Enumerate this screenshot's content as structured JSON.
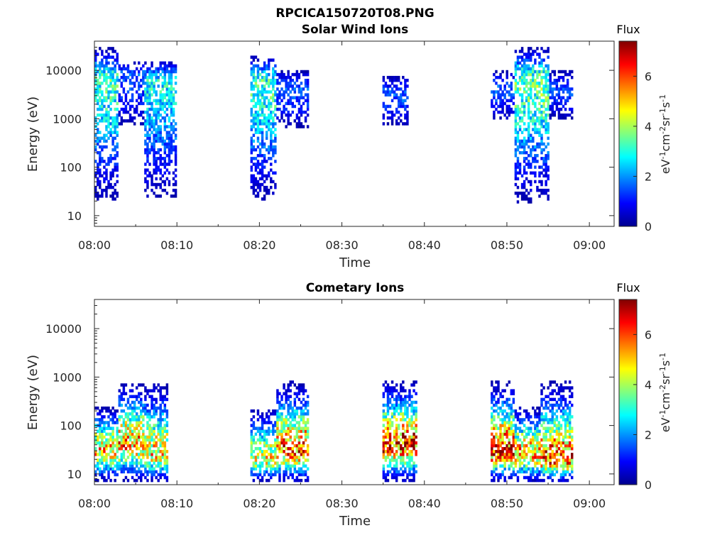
{
  "figure_title": "RPCICA150720T08.PNG",
  "colorbar": {
    "title": "Flux",
    "unit_label": "eV-1cm-2sr-1s-1",
    "range": [
      0,
      7.4
    ],
    "ticks": [
      "0",
      "2",
      "4",
      "6"
    ],
    "colormap": "jet"
  },
  "chart_data": [
    {
      "type": "heatmap",
      "title": "Solar Wind Ions",
      "xlabel": "Time",
      "ylabel": "Energy (eV)",
      "y_scale": "log",
      "ylim": [
        6,
        40000
      ],
      "xlim": [
        "08:00",
        "09:03"
      ],
      "x_tick_labels": [
        "08:00",
        "08:10",
        "08:20",
        "08:30",
        "08:40",
        "08:50",
        "09:00"
      ],
      "y_tick_labels": [
        "10",
        "100",
        "1000",
        "10000"
      ],
      "bursts": [
        {
          "start": "08:00",
          "end": "08:03",
          "peak_energy_eV": 6000,
          "min_energy_eV": 6,
          "max_energy_eV": 40000,
          "peak_flux": 3.6
        },
        {
          "start": "08:03",
          "end": "08:06",
          "peak_energy_eV": 8000,
          "min_energy_eV": 250,
          "max_energy_eV": 20000,
          "peak_flux": 1.8
        },
        {
          "start": "08:06",
          "end": "08:10",
          "peak_energy_eV": 6000,
          "min_energy_eV": 6,
          "max_energy_eV": 20000,
          "peak_flux": 3.2
        },
        {
          "start": "08:19",
          "end": "08:22",
          "peak_energy_eV": 6000,
          "min_energy_eV": 6,
          "max_energy_eV": 25000,
          "peak_flux": 3.6
        },
        {
          "start": "08:22",
          "end": "08:26",
          "peak_energy_eV": 4000,
          "min_energy_eV": 300,
          "max_energy_eV": 15000,
          "peak_flux": 1.8
        },
        {
          "start": "08:35",
          "end": "08:38",
          "peak_energy_eV": 3000,
          "min_energy_eV": 400,
          "max_energy_eV": 12000,
          "peak_flux": 1.8
        },
        {
          "start": "08:48",
          "end": "08:51",
          "peak_energy_eV": 4000,
          "min_energy_eV": 500,
          "max_energy_eV": 15000,
          "peak_flux": 1.8
        },
        {
          "start": "08:51",
          "end": "08:55",
          "peak_energy_eV": 6000,
          "min_energy_eV": 6,
          "max_energy_eV": 40000,
          "peak_flux": 4.0
        },
        {
          "start": "08:55",
          "end": "08:58",
          "peak_energy_eV": 4000,
          "min_energy_eV": 500,
          "max_energy_eV": 15000,
          "peak_flux": 1.6
        }
      ]
    },
    {
      "type": "heatmap",
      "title": "Cometary Ions",
      "xlabel": "Time",
      "ylabel": "Energy (eV)",
      "y_scale": "log",
      "ylim": [
        6,
        40000
      ],
      "xlim": [
        "08:00",
        "09:03"
      ],
      "x_tick_labels": [
        "08:00",
        "08:10",
        "08:20",
        "08:30",
        "08:40",
        "08:50",
        "09:00"
      ],
      "y_tick_labels": [
        "10",
        "100",
        "1000",
        "10000"
      ],
      "bursts": [
        {
          "start": "08:00",
          "end": "08:03",
          "peak_energy_eV": 30,
          "min_energy_eV": 6,
          "max_energy_eV": 300,
          "peak_flux": 5.8
        },
        {
          "start": "08:03",
          "end": "08:06",
          "peak_energy_eV": 40,
          "min_energy_eV": 6,
          "max_energy_eV": 1000,
          "peak_flux": 6.2
        },
        {
          "start": "08:06",
          "end": "08:09",
          "peak_energy_eV": 25,
          "min_energy_eV": 6,
          "max_energy_eV": 1000,
          "peak_flux": 5.6
        },
        {
          "start": "08:19",
          "end": "08:22",
          "peak_energy_eV": 20,
          "min_energy_eV": 6,
          "max_energy_eV": 300,
          "peak_flux": 5.2
        },
        {
          "start": "08:22",
          "end": "08:26",
          "peak_energy_eV": 30,
          "min_energy_eV": 6,
          "max_energy_eV": 1000,
          "peak_flux": 6.8
        },
        {
          "start": "08:35",
          "end": "08:39",
          "peak_energy_eV": 40,
          "min_energy_eV": 6,
          "max_energy_eV": 1000,
          "peak_flux": 7.2
        },
        {
          "start": "08:48",
          "end": "08:51",
          "peak_energy_eV": 30,
          "min_energy_eV": 6,
          "max_energy_eV": 1000,
          "peak_flux": 7.2
        },
        {
          "start": "08:51",
          "end": "08:54",
          "peak_energy_eV": 25,
          "min_energy_eV": 6,
          "max_energy_eV": 300,
          "peak_flux": 6.2
        },
        {
          "start": "08:54",
          "end": "08:58",
          "peak_energy_eV": 20,
          "min_energy_eV": 6,
          "max_energy_eV": 1000,
          "peak_flux": 6.8
        }
      ]
    }
  ]
}
